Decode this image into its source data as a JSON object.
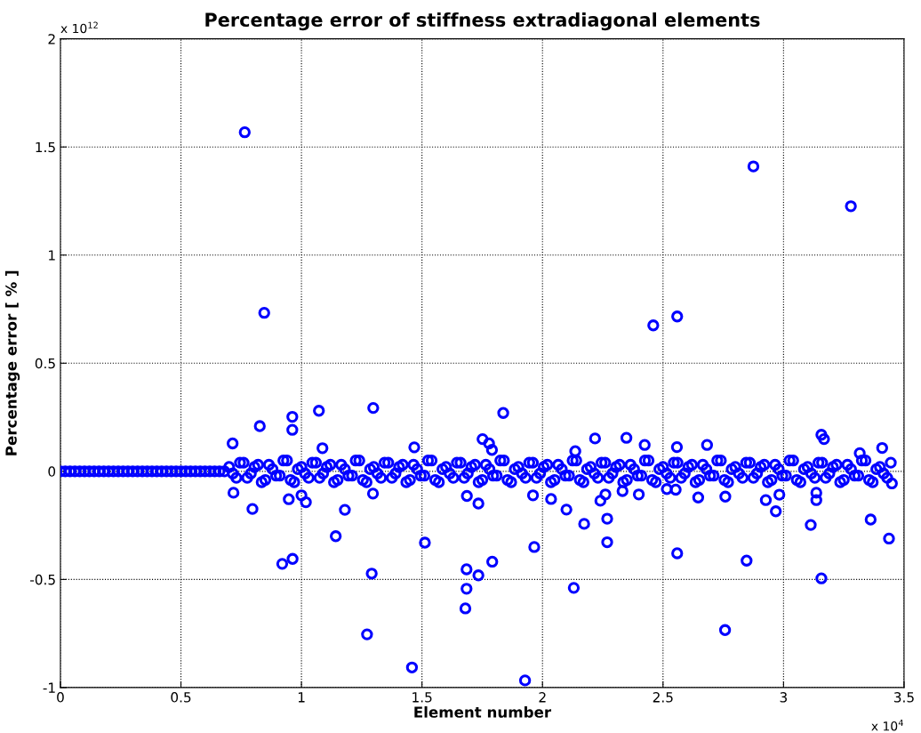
{
  "chart_data": {
    "type": "scatter",
    "title": "Percentage error of stiffness extradiagonal elements",
    "xlabel": "Element number",
    "ylabel": "Percentage error [ % ]",
    "annotations": [
      "x 10$^{12}$",
      "x 10$^{4}$"
    ],
    "xlim": [
      0,
      3.5
    ],
    "ylim": [
      -1,
      2
    ],
    "xticks": [
      0,
      0.5,
      1,
      1.5,
      2,
      2.5,
      3,
      3.5
    ],
    "yticks": [
      -1,
      -0.5,
      0,
      0.5,
      1,
      1.5,
      2
    ],
    "grid": true,
    "marker": "circle",
    "series": [
      {
        "color": "#0000ff",
        "x": [
          0,
          0.02,
          0.04,
          0.06,
          0.08,
          0.1,
          0.12,
          0.14,
          0.16,
          0.18,
          0.2,
          0.22,
          0.24,
          0.26,
          0.28,
          0.3,
          0.32,
          0.34,
          0.36,
          0.38,
          0.4,
          0.42,
          0.44,
          0.46,
          0.48,
          0.5,
          0.52,
          0.54,
          0.56,
          0.58,
          0.6,
          0.62,
          0.64,
          0.66,
          0.68
        ],
        "values": [
          0,
          0,
          0,
          0,
          0,
          0,
          0,
          0,
          0,
          0,
          0,
          0,
          0,
          0,
          0,
          0,
          0,
          0,
          0,
          0,
          0,
          0,
          0,
          0,
          0,
          0,
          0,
          0,
          0,
          0,
          0,
          0,
          0,
          0,
          0
        ]
      },
      {
        "color": "#0000ff",
        "x": [
          0.7,
          0.73,
          0.76,
          0.79,
          0.82,
          0.85,
          0.88,
          0.91,
          0.94,
          0.97,
          1,
          1.03,
          1.06,
          1.09,
          1.12,
          1.15,
          1.18,
          1.21,
          1.24,
          1.27,
          1.3,
          1.33,
          1.36,
          1.39,
          1.42,
          1.45,
          1.48,
          1.51,
          1.54,
          1.57,
          1.6,
          1.63,
          1.66,
          1.69,
          1.72,
          1.75,
          1.78,
          1.81,
          1.84,
          1.87,
          1.9,
          1.93,
          1.96,
          1.99,
          2.02,
          2.05,
          2.08,
          2.11,
          2.14,
          2.17,
          2.2,
          2.23,
          2.26,
          2.29,
          2.32,
          2.35,
          2.38,
          2.41,
          2.44,
          2.47,
          2.5,
          2.53,
          2.56,
          2.59,
          2.62,
          2.65,
          2.68,
          2.71,
          2.74,
          2.77,
          2.8,
          2.83,
          2.86,
          2.89,
          2.92,
          2.95,
          2.98,
          3.01,
          3.04,
          3.07,
          3.1,
          3.13,
          3.16,
          3.19,
          3.22,
          3.25,
          3.28,
          3.31,
          3.34,
          3.37,
          3.4,
          3.43
        ],
        "values": [
          0.02,
          -0.03,
          0.04,
          -0.01,
          0.03,
          -0.04,
          0.01,
          -0.02,
          0.05,
          -0.05,
          0.02,
          -0.03,
          0.04,
          -0.01,
          0.03,
          -0.04,
          0.01,
          -0.02,
          0.05,
          -0.05,
          0.02,
          -0.03,
          0.04,
          -0.01,
          0.03,
          -0.04,
          0.01,
          -0.02,
          0.05,
          -0.05,
          0.02,
          -0.03,
          0.04,
          -0.01,
          0.03,
          -0.04,
          0.01,
          -0.02,
          0.05,
          -0.05,
          0.02,
          -0.03,
          0.04,
          -0.01,
          0.03,
          -0.04,
          0.01,
          -0.02,
          0.05,
          -0.05,
          0.02,
          -0.03,
          0.04,
          -0.01,
          0.03,
          -0.04,
          0.01,
          -0.02,
          0.05,
          -0.05,
          0.02,
          -0.03,
          0.04,
          -0.01,
          0.03,
          -0.04,
          0.01,
          -0.02,
          0.05,
          -0.05,
          0.02,
          -0.03,
          0.04,
          -0.01,
          0.03,
          -0.04,
          0.01,
          -0.02,
          0.05,
          -0.05,
          0.02,
          -0.03,
          0.04,
          -0.01,
          0.03,
          -0.04,
          0.01,
          -0.02,
          0.05,
          -0.05,
          0.02,
          -0.03
        ]
      },
      {
        "color": "#0000ff",
        "x": [
          0.715,
          0.745,
          0.775,
          0.805,
          0.835,
          0.865,
          0.895,
          0.925,
          0.955,
          0.985,
          1.015,
          1.045,
          1.075,
          1.105,
          1.135,
          1.165,
          1.195,
          1.225,
          1.255,
          1.285,
          1.315,
          1.345,
          1.375,
          1.405,
          1.435,
          1.465,
          1.495,
          1.525,
          1.555,
          1.585,
          1.615,
          1.645,
          1.675,
          1.705,
          1.735,
          1.765,
          1.795,
          1.825,
          1.855,
          1.885,
          1.915,
          1.945,
          1.975,
          2.005,
          2.035,
          2.065,
          2.095,
          2.125,
          2.155,
          2.185,
          2.215,
          2.245,
          2.275,
          2.305,
          2.335,
          2.365,
          2.395,
          2.425,
          2.455,
          2.485,
          2.515,
          2.545,
          2.575,
          2.605,
          2.635,
          2.665,
          2.695,
          2.725,
          2.755,
          2.785,
          2.815,
          2.845,
          2.875,
          2.905,
          2.935,
          2.965,
          2.995,
          3.025,
          3.055,
          3.085,
          3.115,
          3.145,
          3.175,
          3.205,
          3.235,
          3.265,
          3.295,
          3.325,
          3.355,
          3.385,
          3.415,
          3.445
        ],
        "values": [
          -0.01,
          0.04,
          -0.03,
          0.02,
          -0.05,
          0.03,
          -0.02,
          0.05,
          -0.04,
          0.01,
          -0.01,
          0.04,
          -0.03,
          0.02,
          -0.05,
          0.03,
          -0.02,
          0.05,
          -0.04,
          0.01,
          -0.01,
          0.04,
          -0.03,
          0.02,
          -0.05,
          0.03,
          -0.02,
          0.05,
          -0.04,
          0.01,
          -0.01,
          0.04,
          -0.03,
          0.02,
          -0.05,
          0.03,
          -0.02,
          0.05,
          -0.04,
          0.01,
          -0.01,
          0.04,
          -0.03,
          0.02,
          -0.05,
          0.03,
          -0.02,
          0.05,
          -0.04,
          0.01,
          -0.01,
          0.04,
          -0.03,
          0.02,
          -0.05,
          0.03,
          -0.02,
          0.05,
          -0.04,
          0.01,
          -0.01,
          0.04,
          -0.03,
          0.02,
          -0.05,
          0.03,
          -0.02,
          0.05,
          -0.04,
          0.01,
          -0.01,
          0.04,
          -0.03,
          0.02,
          -0.05,
          0.03,
          -0.02,
          0.05,
          -0.04,
          0.01,
          -0.01,
          0.04,
          -0.03,
          0.02,
          -0.05,
          0.03,
          -0.02,
          0.05,
          -0.04,
          0.01,
          -0.01,
          0.04
        ]
      },
      {
        "color": "#0000ff",
        "x": [
          0.7647,
          0.8456,
          2.4596,
          2.5588,
          2.875,
          3.2794,
          0.7144,
          0.8272,
          0.9621,
          0.9621,
          1.0724,
          1.0871,
          1.2978,
          1.4681,
          1.8371,
          1.7512,
          1.7783,
          1.7904,
          0.718,
          0.7967,
          1.0184,
          1.0,
          0.9474,
          1.1801,
          1.1423,
          1.2967,
          0.9202,
          0.9632,
          1.2915,
          1.2721,
          1.4585,
          1.5121,
          1.6863,
          1.7341,
          1.6849,
          1.7341,
          1.7915,
          1.6849,
          1.6801,
          1.9276,
          1.9658,
          1.9606,
          2.218,
          2.3481,
          2.4239,
          2.5577,
          2.6827,
          3.157,
          3.168,
          3.3162,
          3.4092,
          2.136,
          2.1298,
          2.0993,
          2.0356,
          2.1728,
          2.2684,
          2.2684,
          2.2401,
          2.261,
          2.332,
          2.3996,
          2.5588,
          2.7574,
          2.8467,
          2.646,
          2.7585,
          2.968,
          2.9265,
          2.9827,
          3.1129,
          3.136,
          3.136,
          3.157,
          3.3614,
          3.4375,
          3.4496,
          2.5158,
          2.5526
        ],
        "values": [
          1.568,
          0.733,
          0.675,
          0.716,
          1.41,
          1.226,
          0.129,
          0.209,
          0.252,
          0.192,
          0.28,
          0.107,
          0.293,
          0.111,
          0.27,
          0.149,
          0.129,
          0.099,
          -0.099,
          -0.174,
          -0.143,
          -0.111,
          -0.129,
          -0.178,
          -0.3,
          -0.103,
          -0.428,
          -0.405,
          -0.473,
          -0.754,
          -0.907,
          -0.33,
          -0.114,
          -0.149,
          -0.453,
          -0.481,
          -0.418,
          -0.543,
          -0.634,
          -0.967,
          -0.35,
          -0.111,
          0.152,
          0.155,
          0.122,
          0.112,
          0.122,
          0.169,
          0.149,
          0.084,
          0.108,
          0.093,
          -0.539,
          -0.177,
          -0.128,
          -0.243,
          -0.219,
          -0.328,
          -0.136,
          -0.107,
          -0.091,
          -0.107,
          -0.379,
          -0.734,
          -0.413,
          -0.121,
          -0.117,
          -0.185,
          -0.133,
          -0.108,
          -0.248,
          -0.133,
          -0.099,
          -0.495,
          -0.223,
          -0.311,
          -0.056,
          -0.082,
          -0.085
        ]
      }
    ]
  }
}
